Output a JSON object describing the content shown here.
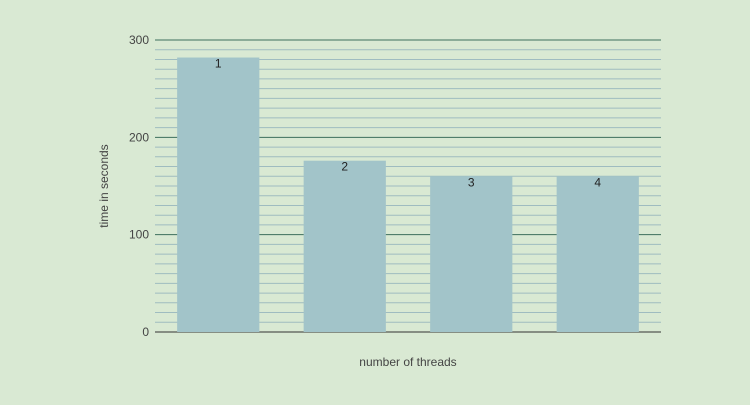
{
  "chart_data": {
    "type": "bar",
    "title": "",
    "xlabel": "number of threads",
    "ylabel": "time in seconds",
    "categories": [
      "1",
      "2",
      "3",
      "4"
    ],
    "series": [
      {
        "values": [
          282,
          176,
          160,
          160
        ]
      }
    ],
    "data_labels": [
      "1",
      "2",
      "3",
      "4"
    ],
    "ylim": [
      0,
      300
    ],
    "yticks": [
      0,
      100,
      200,
      300
    ],
    "ytick_labels": [
      "0",
      "100",
      "200",
      "300"
    ],
    "minor_tick_step": 10,
    "grid": true,
    "legend": "none"
  },
  "colors": {
    "background": "#d9e9d3",
    "bar": "#a2c4c9",
    "major_grid": "#3d6e5c",
    "minor_grid": "#9fbcc0",
    "baseline": "#333333"
  }
}
